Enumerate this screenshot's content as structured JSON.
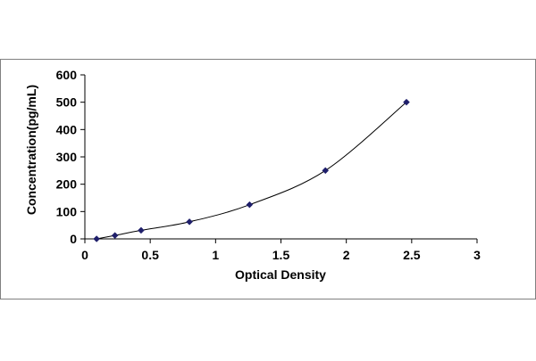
{
  "chart_data": {
    "type": "scatter",
    "title": "",
    "xlabel": "Optical Density",
    "ylabel": "Concentration(pg/mL)",
    "xlim": [
      0,
      3
    ],
    "ylim": [
      0,
      600
    ],
    "x_ticks": [
      0,
      0.5,
      1,
      1.5,
      2,
      2.5,
      3
    ],
    "x_tick_labels": [
      "0",
      "0.5",
      "1",
      "1.5",
      "2",
      "2.5",
      "3"
    ],
    "y_ticks": [
      0,
      100,
      200,
      300,
      400,
      500,
      600
    ],
    "y_tick_labels": [
      "0",
      "100",
      "200",
      "300",
      "400",
      "500",
      "600"
    ],
    "grid": false,
    "legend": "none",
    "series": [
      {
        "points": [
          {
            "x": 0.09,
            "y": 0
          },
          {
            "x": 0.23,
            "y": 12.5
          },
          {
            "x": 0.43,
            "y": 31.25
          },
          {
            "x": 0.8,
            "y": 62.5
          },
          {
            "x": 1.26,
            "y": 125
          },
          {
            "x": 1.84,
            "y": 250
          },
          {
            "x": 2.46,
            "y": 500
          }
        ],
        "marker": "diamond",
        "trendline": true
      }
    ],
    "colors": {
      "marker": "#1f1f6b",
      "line": "#000000",
      "axis": "#000000",
      "frame": "#808080"
    }
  }
}
